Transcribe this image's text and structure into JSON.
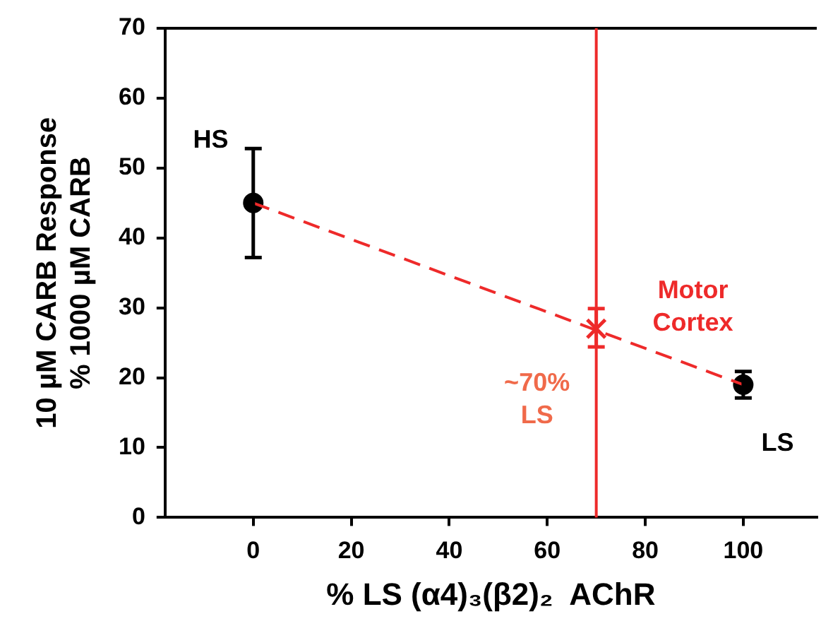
{
  "chart_data": {
    "type": "scatter",
    "xlabel": "% LS (α4)₃(β2)₂  AChR",
    "ylabel": "10 µM CARB Response\n% 1000 µM CARB",
    "xlim": [
      -18,
      115
    ],
    "xticks": [
      0,
      20,
      40,
      60,
      80,
      100
    ],
    "ylim": [
      0,
      70
    ],
    "yticks": [
      0,
      10,
      20,
      30,
      40,
      50,
      60,
      70
    ],
    "grid": false,
    "series": [
      {
        "type": "line",
        "color": "#ee2a2a",
        "x": [
          0,
          100
        ],
        "values": [
          45,
          19
        ],
        "line_style": "dashed"
      },
      {
        "type": "scatter",
        "color": "#000000",
        "x": [
          0,
          100
        ],
        "values": [
          45,
          19
        ],
        "errors": [
          [
            37.2,
            52.8
          ],
          [
            17.1,
            20.9
          ]
        ],
        "marker": "circle"
      },
      {
        "type": "scatter",
        "color": "#ee2a2a",
        "x": [
          70
        ],
        "values": [
          27
        ],
        "errors": [
          [
            24.4,
            29.9
          ]
        ],
        "marker": "cross"
      }
    ],
    "ref_lines": [
      {
        "axis": "x",
        "value": 70,
        "label": "~70% LS",
        "color": "#ee2a2a"
      }
    ],
    "annotations": [
      "HS",
      "LS",
      "Motor Cortex"
    ]
  }
}
